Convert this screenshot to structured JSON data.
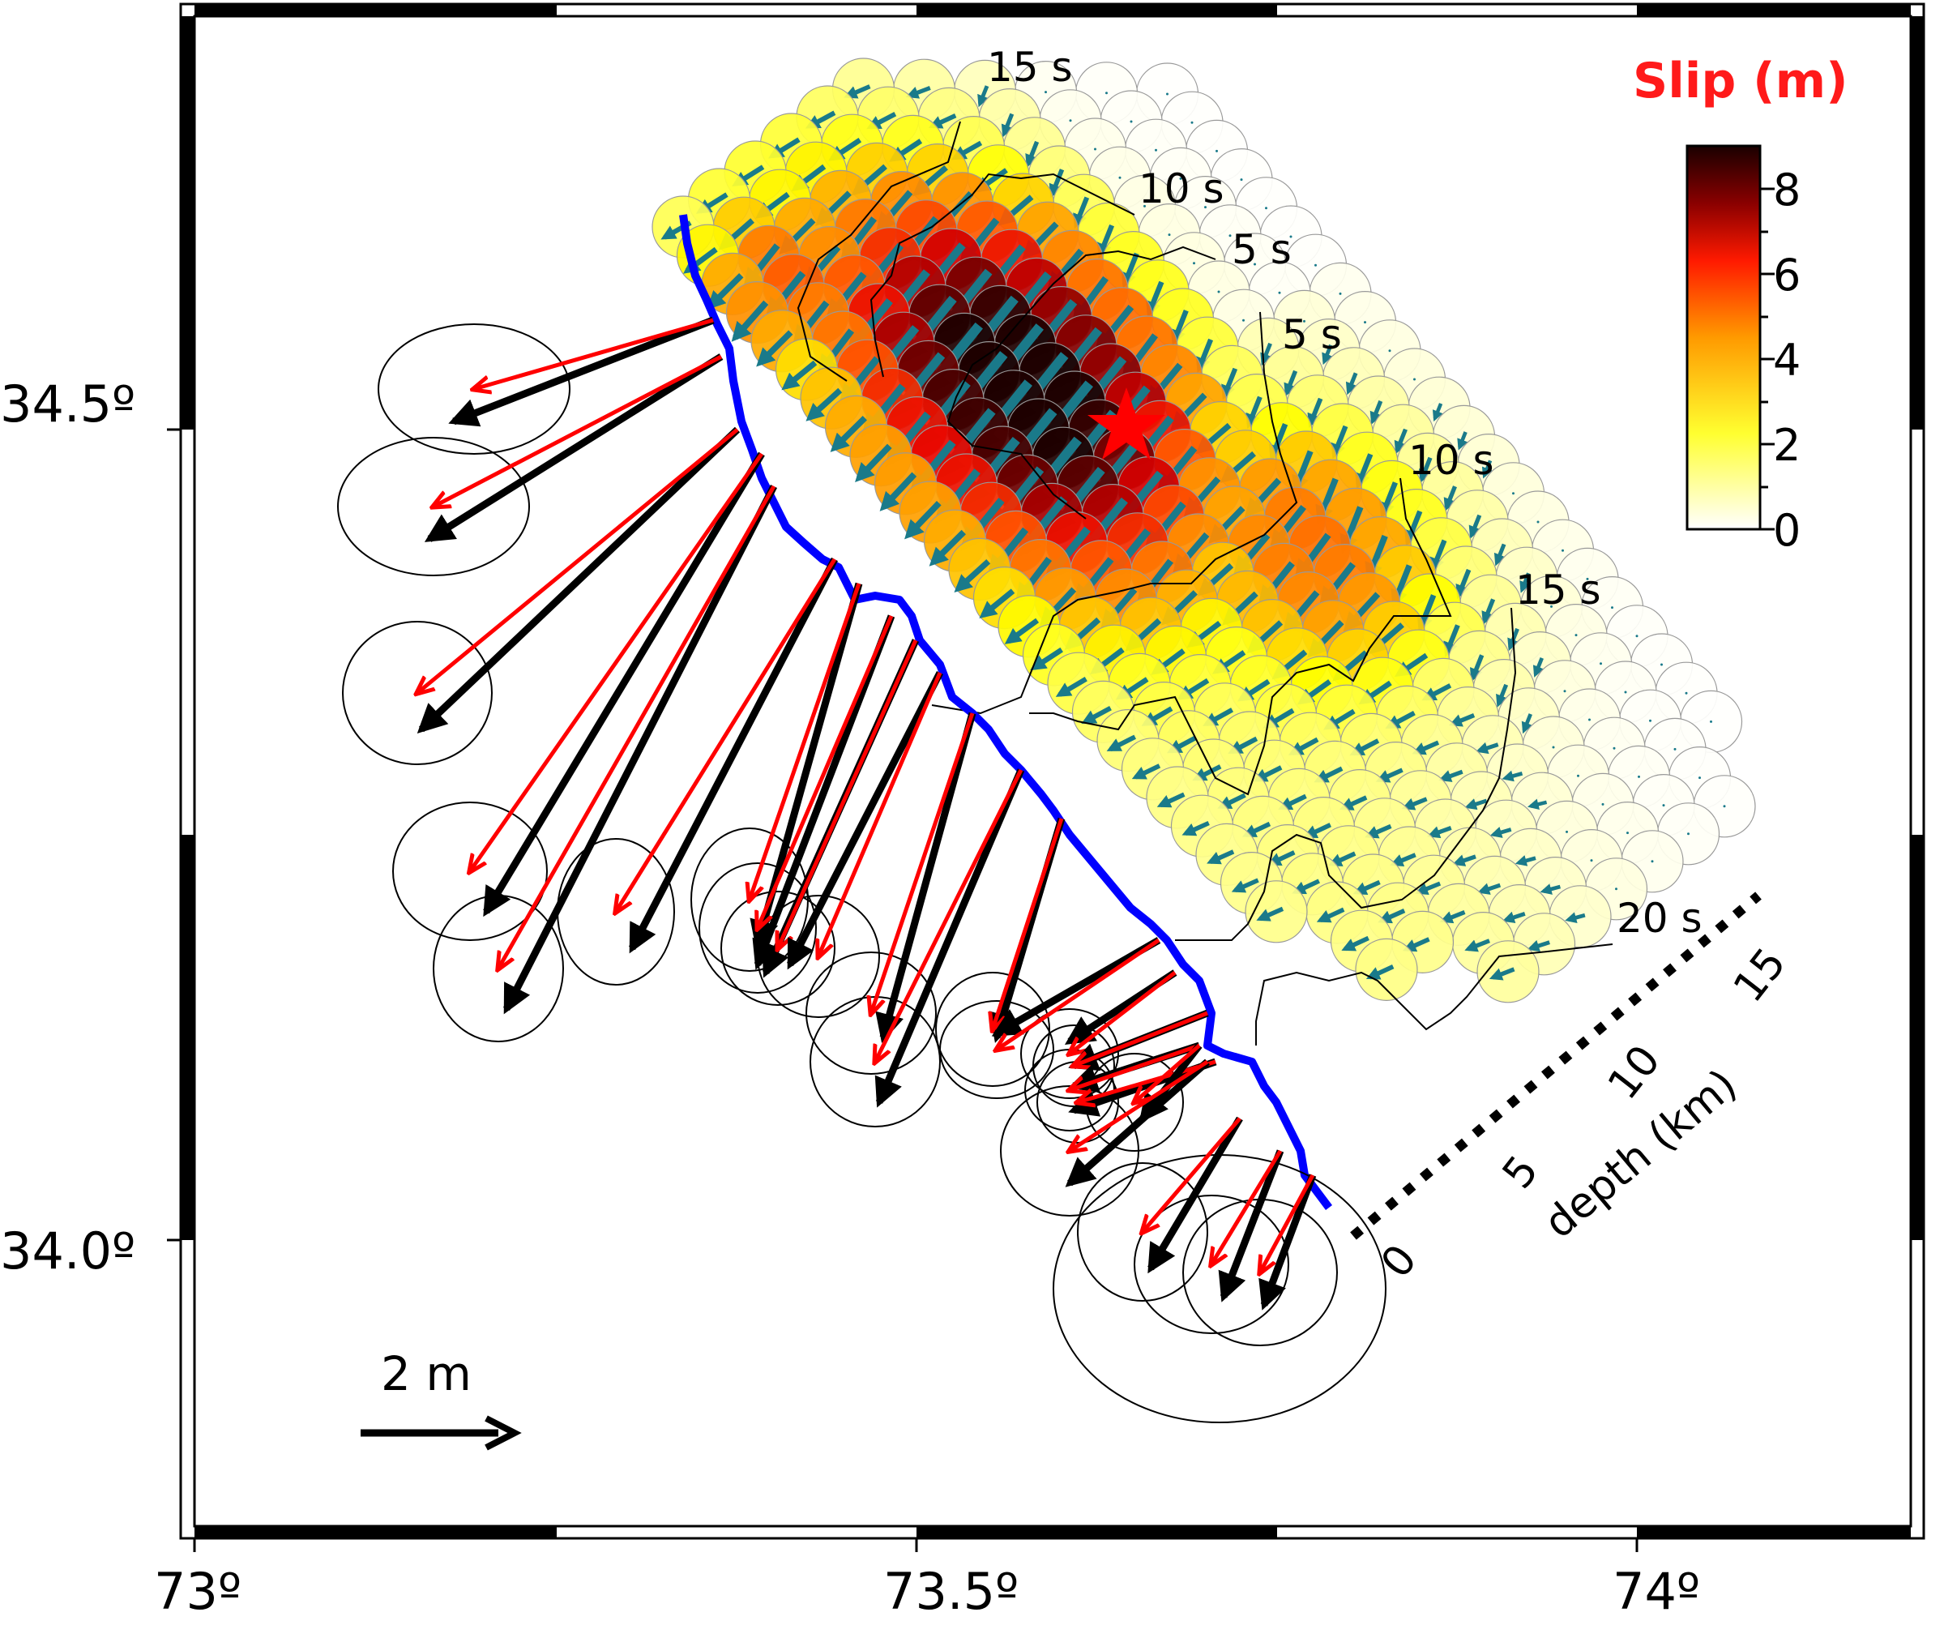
{
  "map": {
    "lon_ticks": [
      "73º",
      "73.5º",
      "74º"
    ],
    "lat_ticks": [
      "34.5º",
      "34.0º"
    ]
  },
  "colorbar": {
    "title": "Slip (m)",
    "ticks": [
      "8",
      "6",
      "4",
      "2",
      "0"
    ],
    "stops": [
      "#ffffff",
      "#ffff00",
      "#ff8000",
      "#ff0000",
      "#800000",
      "#200000"
    ]
  },
  "contours": {
    "labels": [
      "15 s",
      "10 s",
      "5 s",
      "5 s",
      "10 s",
      "15 s",
      "20 s"
    ]
  },
  "depth_axis": {
    "label": "depth (km)",
    "ticks": [
      "0",
      "5",
      "10",
      "15"
    ]
  },
  "scale": {
    "label": "2 m"
  },
  "colors": {
    "observed_vector": "#000000",
    "modeled_vector": "#ff0000",
    "slip_arrow": "#1a7a8a",
    "fault_trace": "#0000ff",
    "hypocenter": "#ff0000"
  }
}
